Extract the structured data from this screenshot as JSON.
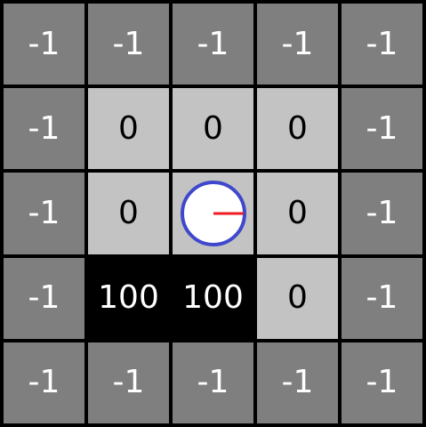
{
  "grid": {
    "rows": 5,
    "cols": 5,
    "cells": [
      [
        -1,
        -1,
        -1,
        -1,
        -1
      ],
      [
        -1,
        0,
        0,
        0,
        -1
      ],
      [
        -1,
        0,
        null,
        0,
        -1
      ],
      [
        -1,
        100,
        100,
        0,
        -1
      ],
      [
        -1,
        -1,
        -1,
        -1,
        -1
      ]
    ]
  },
  "agent": {
    "row": 2,
    "col": 2,
    "heading": "right"
  },
  "colors": {
    "grid_line": "#000000",
    "wall_cell": "#7f7f7f",
    "open_cell": "#c3c3c3",
    "goal_cell": "#000000",
    "wall_text": "#ffffff",
    "open_text": "#000000",
    "goal_text": "#ffffff",
    "agent_fill": "#ffffff",
    "agent_ring": "#3f48cc",
    "agent_heading": "#ed1c24"
  }
}
